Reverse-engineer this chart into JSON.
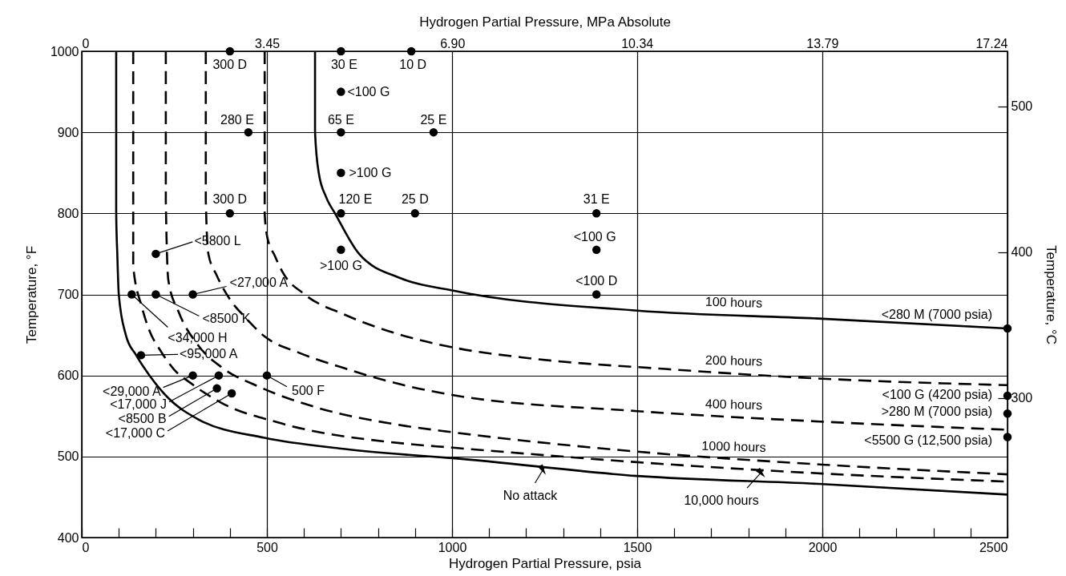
{
  "chart_data": {
    "type": "line",
    "xlabel": "Hydrogen Partial Pressure, psia",
    "x2label": "Hydrogen Partial Pressure, MPa Absolute",
    "ylabel": "Temperature, °F",
    "y2label": "Temperature, °C",
    "xlim": [
      0,
      2500
    ],
    "xticks": [
      0,
      {
        "value": 100,
        "label": null
      },
      {
        "value": 200,
        "label": null
      },
      {
        "value": 300,
        "label": null
      },
      {
        "value": 400,
        "label": null
      },
      500,
      {
        "value": 600,
        "label": null
      },
      {
        "value": 700,
        "label": null
      },
      {
        "value": 800,
        "label": null
      },
      {
        "value": 900,
        "label": null
      },
      1000,
      {
        "value": 1100,
        "label": null
      },
      {
        "value": 1200,
        "label": null
      },
      {
        "value": 1300,
        "label": null
      },
      {
        "value": 1400,
        "label": null
      },
      1500,
      {
        "value": 1600,
        "label": null
      },
      {
        "value": 1700,
        "label": null
      },
      {
        "value": 1800,
        "label": null
      },
      {
        "value": 1900,
        "label": null
      },
      2000,
      {
        "value": 2100,
        "label": null
      },
      {
        "value": 2200,
        "label": null
      },
      {
        "value": 2300,
        "label": null
      },
      {
        "value": 2400,
        "label": null
      },
      2500
    ],
    "x2lim": [
      0,
      17.24
    ],
    "x2ticks": [
      0,
      3.45,
      {
        "value": 6.9,
        "label": "6.90"
      },
      10.34,
      13.79,
      17.24
    ],
    "ylim": [
      400,
      1000
    ],
    "yticks": [
      400,
      500,
      600,
      700,
      800,
      900,
      1000
    ],
    "y2lim": [
      204.4,
      537.8
    ],
    "y2ticks": [
      300,
      400,
      500
    ],
    "grid": true,
    "series": [
      {
        "color": "#000000",
        "line_style": "solid",
        "x": [
          630,
          630,
          640,
          660,
          684,
          749,
          861,
          1000,
          1500,
          2000,
          2500
        ],
        "values": [
          1000,
          900,
          850,
          820,
          800,
          750,
          720,
          705,
          680,
          670,
          658
        ]
      },
      {
        "color": "#000000",
        "line_style": "dashed",
        "x": [
          494,
          494,
          500,
          522,
          543,
          602,
          710,
          855,
          998,
          1214,
          1576,
          2000,
          2500
        ],
        "values": [
          1000,
          800,
          773,
          747,
          727,
          700,
          675,
          651,
          635,
          621,
          608,
          596,
          588
        ]
      },
      {
        "color": "#000000",
        "line_style": "dashed",
        "x": [
          335,
          335,
          342,
          364,
          400,
          443,
          494,
          587,
          695,
          870,
          1000,
          1500,
          2000,
          2500
        ],
        "values": [
          1000,
          816,
          750,
          724,
          694,
          671,
          648,
          628,
          611,
          588,
          576,
          556,
          543,
          533
        ]
      },
      {
        "color": "#000000",
        "line_style": "dashed",
        "x": [
          227,
          227,
          234,
          262,
          313,
          378,
          479,
          623,
          870,
          1000,
          1500,
          2000,
          2500
        ],
        "values": [
          1000,
          816,
          717,
          678,
          638,
          610,
          586,
          562,
          538,
          530,
          506,
          490,
          478
        ]
      },
      {
        "color": "#000000",
        "line_style": "dashed",
        "x": [
          139,
          139,
          162,
          183,
          212,
          248,
          299,
          378,
          530,
          870,
          1000,
          1500,
          2000,
          2500
        ],
        "values": [
          1000,
          734,
          685,
          655,
          631,
          608,
          589,
          566,
          542,
          516,
          511,
          493,
          479,
          469
        ]
      },
      {
        "color": "#000000",
        "line_style": "solid",
        "x": [
          93,
          93,
          96,
          100,
          119,
          147,
          183,
          234,
          314,
          494,
          695,
          883,
          1000,
          1500,
          2000,
          2500
        ],
        "values": [
          1000,
          800,
          750,
          700,
          650,
          625,
          600,
          572,
          546,
          523,
          510,
          502,
          498,
          476,
          466,
          453
        ]
      },
      {
        "type": "scatter",
        "color": "#000000",
        "marker": "circle",
        "x": [
          400,
          700,
          890,
          700,
          450,
          700,
          950,
          700,
          400,
          700,
          900,
          1390,
          1390,
          1390,
          700,
          200,
          135,
          200,
          300,
          160,
          300,
          370,
          365,
          405,
          500,
          2500,
          2500,
          2500,
          2500
        ],
        "values": [
          1000,
          1000,
          1000,
          950,
          900,
          900,
          900,
          850,
          800,
          800,
          800,
          800,
          755,
          700,
          755,
          750,
          700,
          700,
          700,
          625,
          600,
          600,
          584,
          578,
          600,
          658,
          575,
          553,
          524
        ]
      }
    ],
    "annotations": [
      {
        "text": "300 D",
        "x": 400,
        "y": 1000
      },
      {
        "text": "30 E",
        "x": 700,
        "y": 1000
      },
      {
        "text": "10 D",
        "x": 890,
        "y": 1000
      },
      {
        "text": "<100 G",
        "x": 700,
        "y": 950
      },
      {
        "text": "280 E",
        "x": 450,
        "y": 900
      },
      {
        "text": "65 E",
        "x": 700,
        "y": 900
      },
      {
        "text": "25 E",
        "x": 950,
        "y": 900
      },
      {
        "text": ">100 G",
        "x": 700,
        "y": 850
      },
      {
        "text": "300 D",
        "x": 400,
        "y": 800
      },
      {
        "text": "120 E",
        "x": 700,
        "y": 800
      },
      {
        "text": "25 D",
        "x": 900,
        "y": 800
      },
      {
        "text": "31 E",
        "x": 1390,
        "y": 800
      },
      {
        "text": "<100 G",
        "x": 1390,
        "y": 755
      },
      {
        "text": "<100 D",
        "x": 1390,
        "y": 700
      },
      {
        "text": ">100 G",
        "x": 700,
        "y": 755
      },
      {
        "text": "<5800 L",
        "x": 200,
        "y": 750
      },
      {
        "text": "<34,000 H",
        "x": 135,
        "y": 700
      },
      {
        "text": "<8500 K",
        "x": 200,
        "y": 700
      },
      {
        "text": "<27,000 A",
        "x": 300,
        "y": 700
      },
      {
        "text": "<95,000 A",
        "x": 160,
        "y": 625
      },
      {
        "text": "<29,000 A",
        "x": 300,
        "y": 600
      },
      {
        "text": "<17,000 J",
        "x": 370,
        "y": 600
      },
      {
        "text": "<8500 B",
        "x": 365,
        "y": 584
      },
      {
        "text": "<17,000 C",
        "x": 405,
        "y": 578
      },
      {
        "text": "500 F",
        "x": 500,
        "y": 600
      },
      {
        "text": "<280 M (7000 psia)",
        "x": 2500,
        "y": 658
      },
      {
        "text": "<100 G (4200 psia)",
        "x": 2500,
        "y": 575
      },
      {
        "text": ">280 M (7000 psia)",
        "x": 2500,
        "y": 553
      },
      {
        "text": "<5500 G (12,500 psia)",
        "x": 2500,
        "y": 524
      },
      {
        "text": "100 hours",
        "x": 1760,
        "y": 676
      },
      {
        "text": "200 hours",
        "x": 1760,
        "y": 604
      },
      {
        "text": "400 hours",
        "x": 1760,
        "y": 550
      },
      {
        "text": "1000 hours",
        "x": 1760,
        "y": 498
      },
      {
        "text": "No attack",
        "x": 1250,
        "y": 487
      },
      {
        "text": "10,000 hours",
        "x": 1840,
        "y": 483
      }
    ]
  }
}
